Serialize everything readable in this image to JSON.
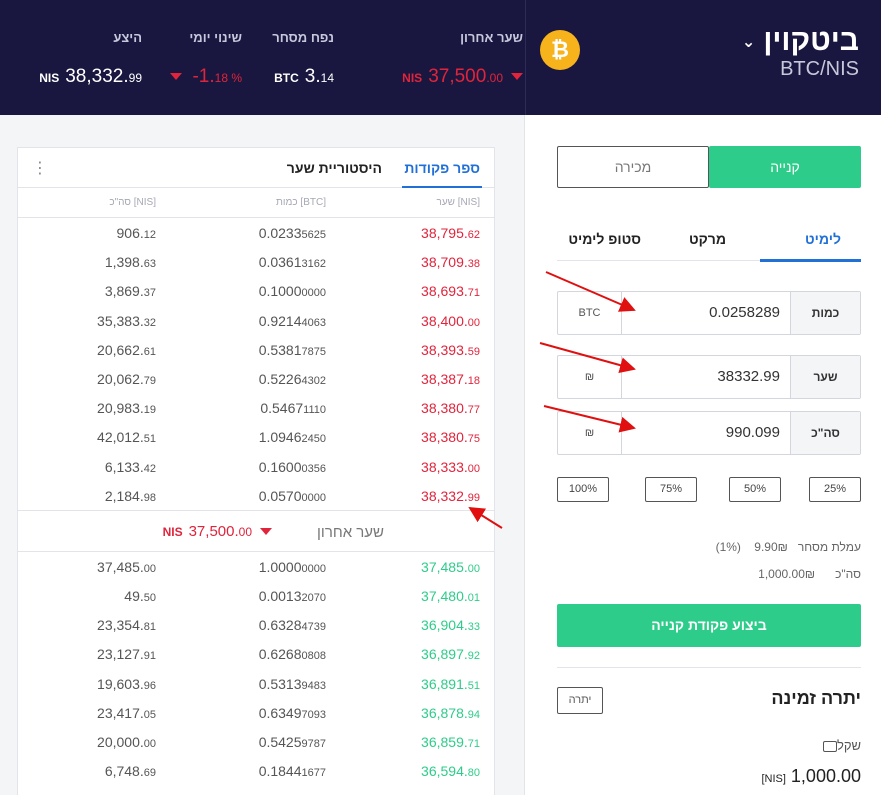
{
  "header": {
    "coin_name": "ביטקוין",
    "pair": "BTC/NIS",
    "btc_icon_glyph": "₿",
    "stats": {
      "last_price_label": "שער אחרון",
      "last_price_unit": "NIS",
      "last_price_int": "37,500",
      "last_price_dec": ".00",
      "volume_label": "נפח מסחר",
      "volume_unit": "BTC",
      "volume_int": "3.",
      "volume_dec": "14",
      "change_label": "שינוי יומי",
      "change_int": "-1.",
      "change_dec": "18 %",
      "supply_label": "היצע",
      "supply_unit": "NIS",
      "supply_int": "38,332.",
      "supply_dec": "99"
    }
  },
  "book": {
    "tab_orders": "ספר פקודות",
    "tab_history": "היסטוריית שער",
    "head_price": "שער [NIS]",
    "head_amount": "כמות [BTC]",
    "head_total": "סה\"כ [NIS]",
    "asks": [
      {
        "p": "38,795.",
        "pd": "62",
        "a": "0.0233",
        "ad": "5625",
        "t": "906.",
        "td": "12"
      },
      {
        "p": "38,709.",
        "pd": "38",
        "a": "0.0361",
        "ad": "3162",
        "t": "1,398.",
        "td": "63"
      },
      {
        "p": "38,693.",
        "pd": "71",
        "a": "0.1000",
        "ad": "0000",
        "t": "3,869.",
        "td": "37"
      },
      {
        "p": "38,400.",
        "pd": "00",
        "a": "0.9214",
        "ad": "4063",
        "t": "35,383.",
        "td": "32"
      },
      {
        "p": "38,393.",
        "pd": "59",
        "a": "0.5381",
        "ad": "7875",
        "t": "20,662.",
        "td": "61"
      },
      {
        "p": "38,387.",
        "pd": "18",
        "a": "0.5226",
        "ad": "4302",
        "t": "20,062.",
        "td": "79"
      },
      {
        "p": "38,380.",
        "pd": "77",
        "a": "0.5467",
        "ad": "1110",
        "t": "20,983.",
        "td": "19"
      },
      {
        "p": "38,380.",
        "pd": "75",
        "a": "1.0946",
        "ad": "2450",
        "t": "42,012.",
        "td": "51"
      },
      {
        "p": "38,333.",
        "pd": "00",
        "a": "0.1600",
        "ad": "0356",
        "t": "6,133.",
        "td": "42"
      },
      {
        "p": "38,332.",
        "pd": "99",
        "a": "0.0570",
        "ad": "0000",
        "t": "2,184.",
        "td": "98"
      }
    ],
    "last_label": "שער אחרון",
    "last_unit": "NIS",
    "last_int": "37,500.",
    "last_dec": "00",
    "bids": [
      {
        "p": "37,485.",
        "pd": "00",
        "a": "1.0000",
        "ad": "0000",
        "t": "37,485.",
        "td": "00"
      },
      {
        "p": "37,480.",
        "pd": "01",
        "a": "0.0013",
        "ad": "2070",
        "t": "49.",
        "td": "50"
      },
      {
        "p": "36,904.",
        "pd": "33",
        "a": "0.6328",
        "ad": "4739",
        "t": "23,354.",
        "td": "81"
      },
      {
        "p": "36,897.",
        "pd": "92",
        "a": "0.6268",
        "ad": "0808",
        "t": "23,127.",
        "td": "91"
      },
      {
        "p": "36,891.",
        "pd": "51",
        "a": "0.5313",
        "ad": "9483",
        "t": "19,603.",
        "td": "96"
      },
      {
        "p": "36,878.",
        "pd": "94",
        "a": "0.6349",
        "ad": "7093",
        "t": "23,417.",
        "td": "05"
      },
      {
        "p": "36,859.",
        "pd": "71",
        "a": "0.5425",
        "ad": "9787",
        "t": "20,000.",
        "td": "00"
      },
      {
        "p": "36,594.",
        "pd": "80",
        "a": "0.1844",
        "ad": "1677",
        "t": "6,748.",
        "td": "69"
      }
    ]
  },
  "panel": {
    "buy": "קנייה",
    "sell": "מכירה",
    "tab_limit": "לימיט",
    "tab_market": "מרקט",
    "tab_stop": "סטופ לימיט",
    "qty_label": "כמות",
    "qty_value": "0.0258289",
    "qty_unit": "BTC",
    "rate_label": "שער",
    "rate_value": "38332.99",
    "rate_unit": "₪",
    "total_label": "סה\"כ",
    "total_value": "990.099",
    "total_unit": "₪",
    "pct": [
      "25%",
      "50%",
      "75%",
      "100%"
    ],
    "fee_label": "עמלת מסחר",
    "fee_value": "9.90₪",
    "fee_pct": "(1%)",
    "sum_label": "סה\"כ",
    "sum_value": "1,000.00₪",
    "exec_button": "ביצוע פקודת קנייה",
    "avail_title": "יתרה זמינה",
    "avail_button": "יתרה",
    "wallet_label": "שקל",
    "wallet_unit": "[NIS]",
    "wallet_int": "1,000.",
    "wallet_dec": "00"
  },
  "colors": {
    "navy": "#19173f",
    "green": "#2ecc8a",
    "red": "#e0243c",
    "blue": "#2170d8",
    "btc": "#f7b31c"
  }
}
